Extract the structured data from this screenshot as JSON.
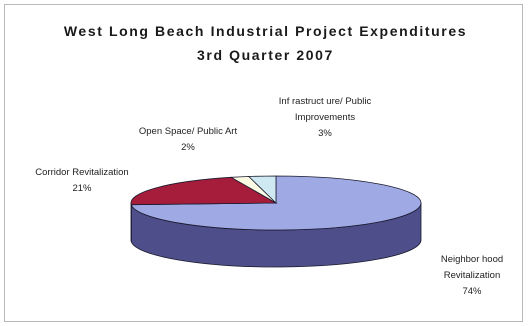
{
  "chart_data": {
    "type": "pie",
    "title": [
      "West Long Beach Industrial Project Expenditures",
      "3rd Quarter 2007"
    ],
    "slices": [
      {
        "name": "Neighborhood Revitalization",
        "label_lines": [
          "Neighbor hood",
          "Revitalization"
        ],
        "value": 74,
        "value_label": "74%",
        "color": "#9fa9e3",
        "side_color": "#4e4e8a"
      },
      {
        "name": "Corridor Revitalization",
        "label_lines": [
          "Corridor Revitalization"
        ],
        "value": 21,
        "value_label": "21%",
        "color": "#a61d3c",
        "side_color": "#6e1027"
      },
      {
        "name": "Open Space/Public Art",
        "label_lines": [
          "Open Space/ Public Art"
        ],
        "value": 2,
        "value_label": "2%",
        "color": "#fbfbe4",
        "side_color": "#bcbca6"
      },
      {
        "name": "Infrastructure/Public Improvements",
        "label_lines": [
          "Inf rastruct ure/ Public",
          "Improvements"
        ],
        "value": 3,
        "value_label": "3%",
        "color": "#cfe9f2",
        "side_color": "#8ea9b3"
      }
    ],
    "legend": "none"
  }
}
